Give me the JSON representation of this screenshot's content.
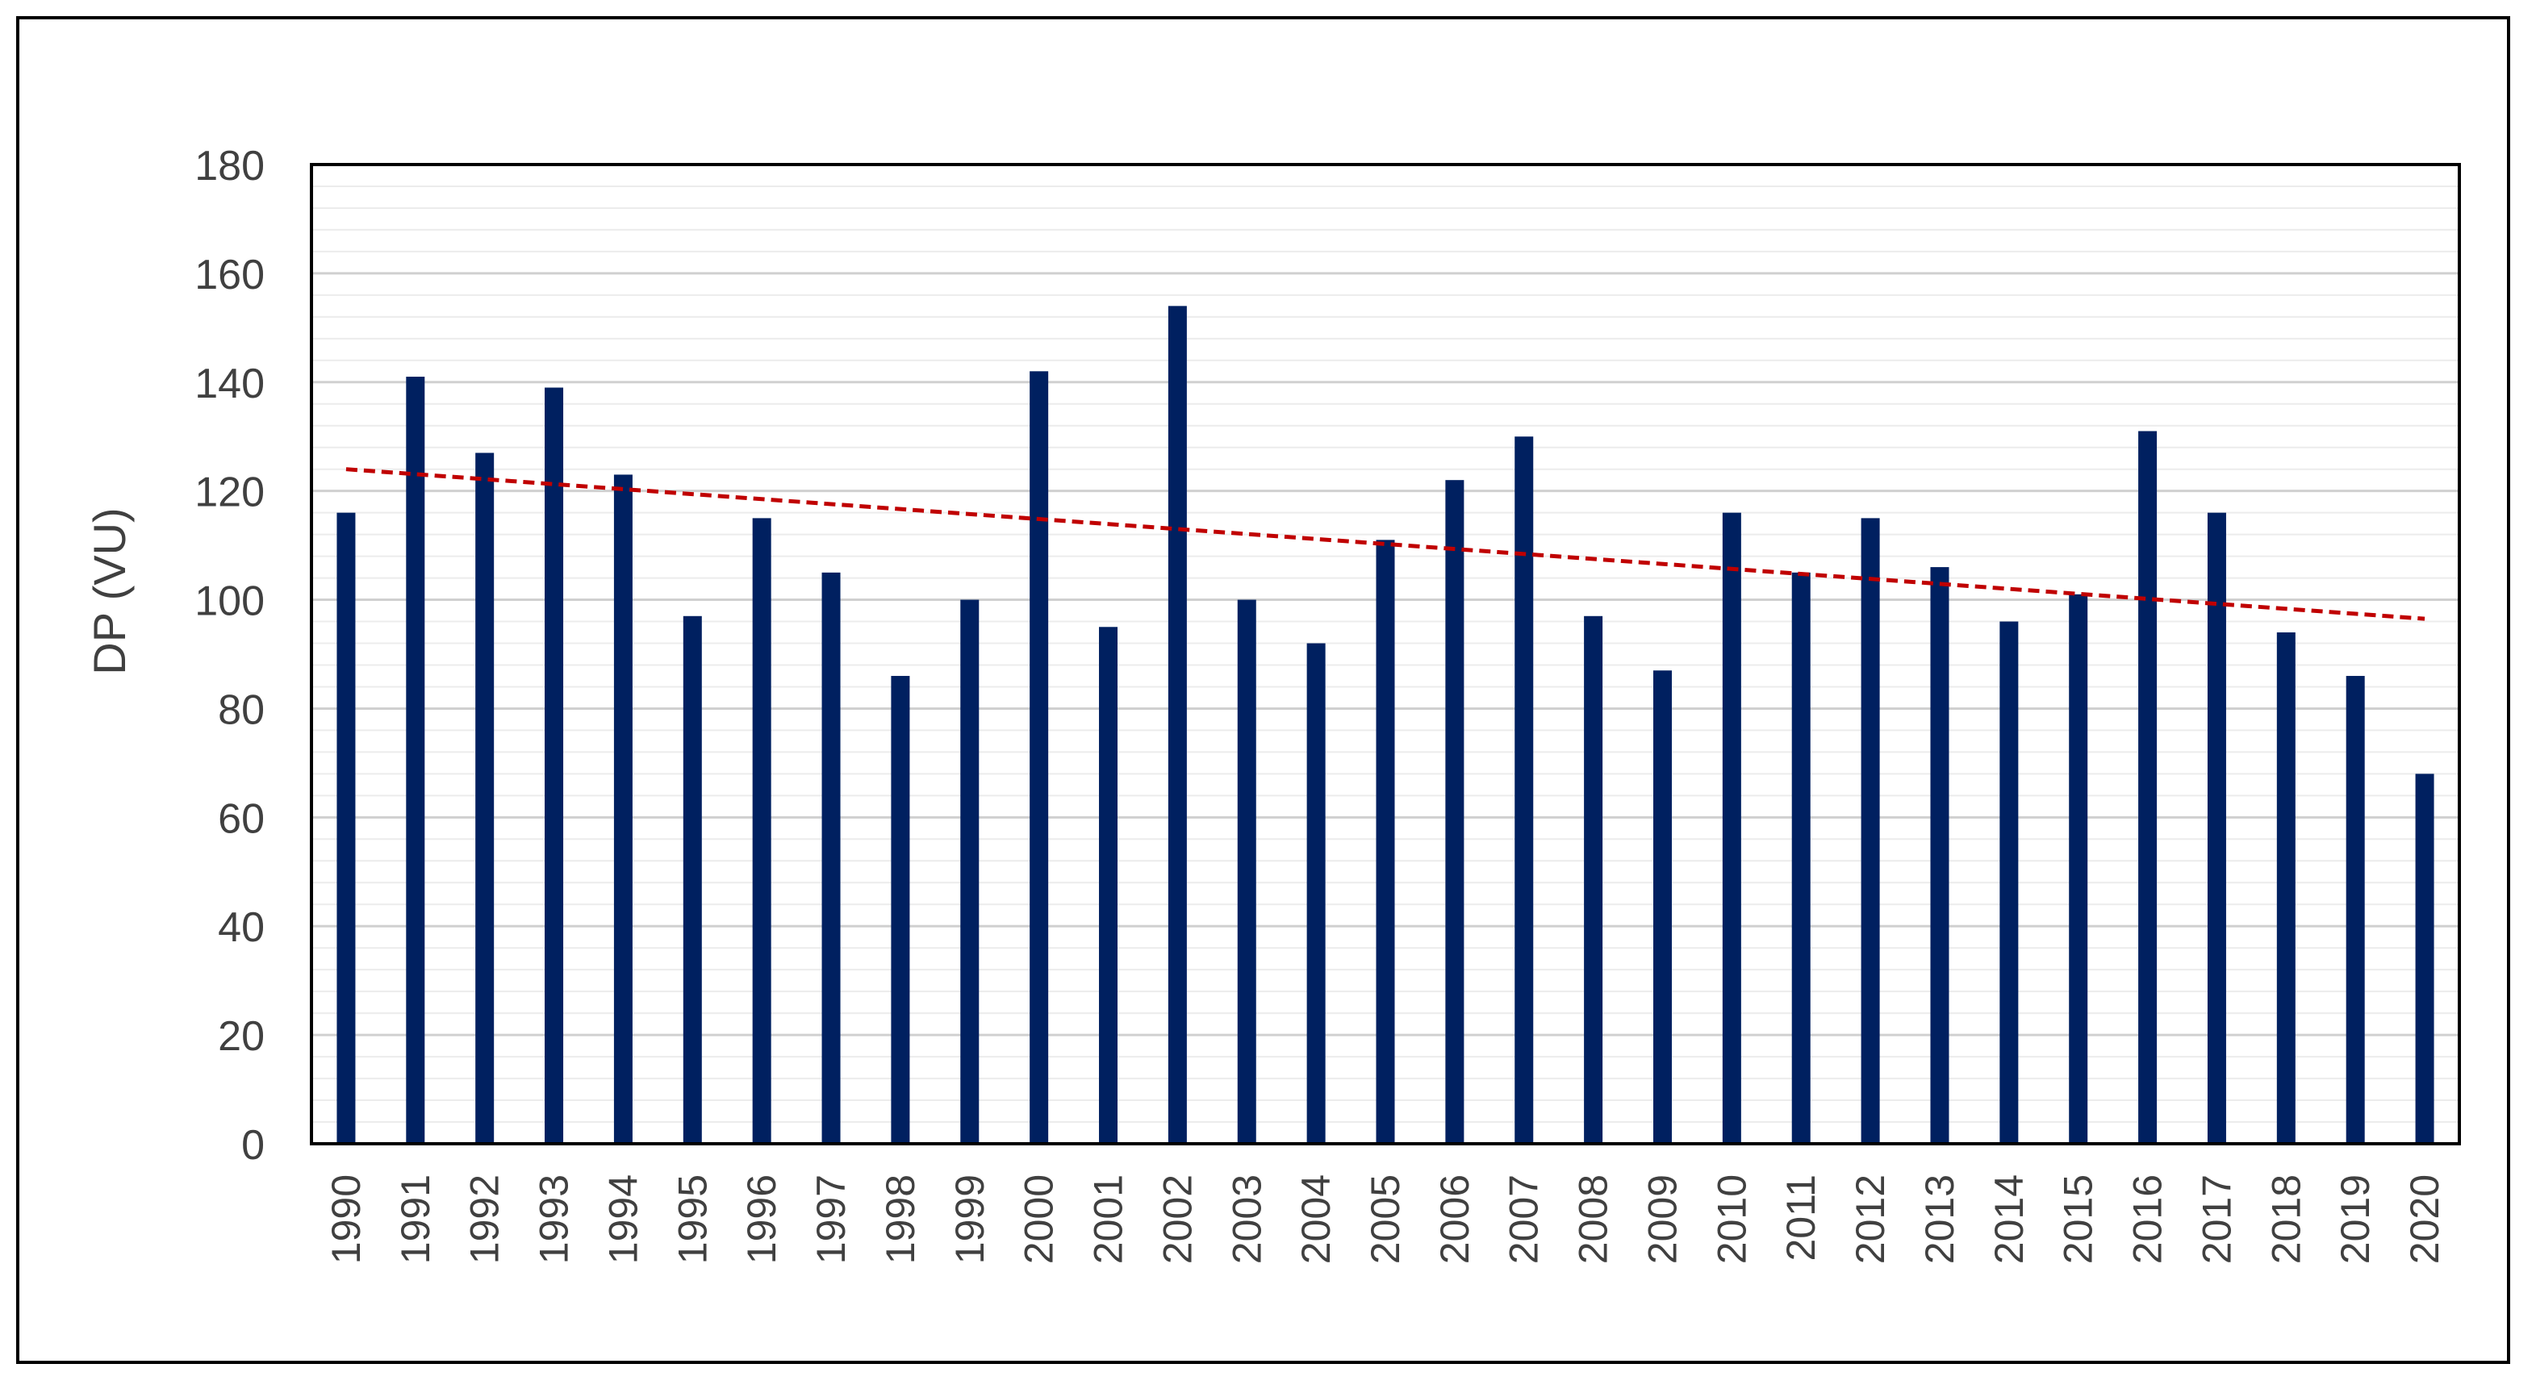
{
  "chart_data": {
    "type": "bar",
    "title": "",
    "xlabel": "",
    "ylabel": "DP (VU)",
    "ylim": [
      0,
      180
    ],
    "yticks": [
      0,
      20,
      40,
      60,
      80,
      100,
      120,
      140,
      160,
      180
    ],
    "grid": true,
    "legend": "none",
    "categories": [
      "1990",
      "1991",
      "1992",
      "1993",
      "1994",
      "1995",
      "1996",
      "1997",
      "1998",
      "1999",
      "2000",
      "2001",
      "2002",
      "2003",
      "2004",
      "2005",
      "2006",
      "2007",
      "2008",
      "2009",
      "2010",
      "2011",
      "2012",
      "2013",
      "2014",
      "2015",
      "2016",
      "2017",
      "2018",
      "2019",
      "2020"
    ],
    "series": [
      {
        "values": [
          116,
          141,
          127,
          139,
          123,
          97,
          115,
          105,
          86,
          100,
          142,
          95,
          154,
          100,
          92,
          111,
          122,
          130,
          97,
          87,
          116,
          105,
          115,
          106,
          96,
          101,
          131,
          116,
          94,
          86,
          68
        ],
        "color": "#002060"
      }
    ],
    "trendline": {
      "type": "linear",
      "start": 124.0,
      "end": 96.5,
      "color": "#C00000",
      "style": "dashed"
    }
  }
}
